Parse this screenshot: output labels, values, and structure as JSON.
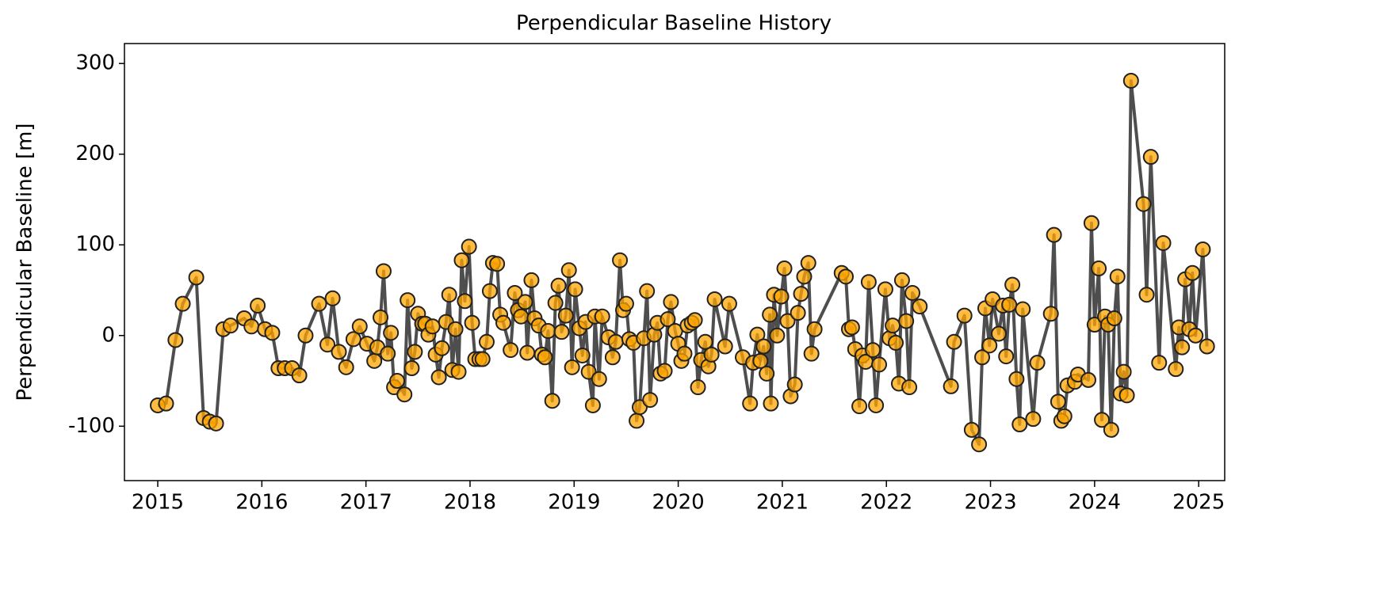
{
  "chart_data": {
    "type": "line",
    "title": "Perpendicular Baseline History",
    "y_label": "Perpendicular Baseline [m]",
    "x": [
      2015.0,
      2015.08,
      2015.17,
      2015.24,
      2015.37,
      2015.44,
      2015.5,
      2015.56,
      2015.63,
      2015.7,
      2015.83,
      2015.9,
      2015.96,
      2016.03,
      2016.1,
      2016.16,
      2016.22,
      2016.29,
      2016.36,
      2016.42,
      2016.55,
      2016.63,
      2016.68,
      2016.74,
      2016.81,
      2016.88,
      2016.94,
      2017.01,
      2017.08,
      2017.11,
      2017.14,
      2017.17,
      2017.21,
      2017.24,
      2017.27,
      2017.3,
      2017.37,
      2017.4,
      2017.44,
      2017.47,
      2017.5,
      2017.54,
      2017.57,
      2017.6,
      2017.64,
      2017.67,
      2017.7,
      2017.73,
      2017.77,
      2017.8,
      2017.83,
      2017.86,
      2017.89,
      2017.92,
      2017.95,
      2017.99,
      2018.02,
      2018.05,
      2018.09,
      2018.12,
      2018.16,
      2018.19,
      2018.22,
      2018.26,
      2018.29,
      2018.32,
      2018.39,
      2018.43,
      2018.46,
      2018.49,
      2018.53,
      2018.55,
      2018.59,
      2018.62,
      2018.66,
      2018.69,
      2018.72,
      2018.75,
      2018.79,
      2018.82,
      2018.85,
      2018.88,
      2018.92,
      2018.95,
      2018.98,
      2019.01,
      2019.05,
      2019.08,
      2019.11,
      2019.14,
      2019.18,
      2019.2,
      2019.24,
      2019.27,
      2019.33,
      2019.37,
      2019.4,
      2019.44,
      2019.47,
      2019.5,
      2019.53,
      2019.57,
      2019.6,
      2019.63,
      2019.67,
      2019.7,
      2019.73,
      2019.77,
      2019.8,
      2019.83,
      2019.87,
      2019.9,
      2019.93,
      2019.97,
      2020.0,
      2020.03,
      2020.06,
      2020.09,
      2020.13,
      2020.16,
      2020.19,
      2020.22,
      2020.26,
      2020.29,
      2020.32,
      2020.35,
      2020.45,
      2020.49,
      2020.62,
      2020.69,
      2020.72,
      2020.76,
      2020.79,
      2020.82,
      2020.85,
      2020.88,
      2020.89,
      2020.92,
      2020.95,
      2020.99,
      2021.02,
      2021.05,
      2021.08,
      2021.12,
      2021.15,
      2021.18,
      2021.21,
      2021.25,
      2021.28,
      2021.31,
      2021.57,
      2021.61,
      2021.64,
      2021.67,
      2021.7,
      2021.74,
      2021.77,
      2021.8,
      2021.83,
      2021.87,
      2021.9,
      2021.93,
      2021.99,
      2022.03,
      2022.06,
      2022.09,
      2022.12,
      2022.15,
      2022.19,
      2022.22,
      2022.25,
      2022.32,
      2022.62,
      2022.65,
      2022.75,
      2022.82,
      2022.89,
      2022.92,
      2022.95,
      2022.99,
      2023.02,
      2023.08,
      2023.12,
      2023.15,
      2023.18,
      2023.21,
      2023.25,
      2023.28,
      2023.31,
      2023.41,
      2023.45,
      2023.58,
      2023.61,
      2023.65,
      2023.68,
      2023.71,
      2023.74,
      2023.81,
      2023.84,
      2023.94,
      2023.97,
      2024.0,
      2024.04,
      2024.07,
      2024.1,
      2024.13,
      2024.16,
      2024.19,
      2024.22,
      2024.25,
      2024.28,
      2024.31,
      2024.35,
      2024.47,
      2024.5,
      2024.54,
      2024.62,
      2024.66,
      2024.78,
      2024.81,
      2024.84,
      2024.87,
      2024.91,
      2024.94,
      2024.97,
      2025.04,
      2025.08
    ],
    "values": [
      -77,
      -75,
      -5,
      35,
      64,
      -91,
      -95,
      -97,
      7,
      11,
      19,
      10,
      33,
      7,
      3,
      -36,
      -36,
      -36,
      -44,
      0,
      35,
      -10,
      41,
      -18,
      -35,
      -4,
      10,
      -9,
      -28,
      -13,
      20,
      71,
      -20,
      3,
      -57,
      -50,
      -65,
      39,
      -36,
      -18,
      24,
      13,
      13,
      1,
      10,
      -21,
      -46,
      -14,
      15,
      45,
      -38,
      7,
      -40,
      83,
      38,
      98,
      14,
      -26,
      -26,
      -26,
      -7,
      49,
      80,
      79,
      23,
      14,
      -16,
      47,
      28,
      21,
      37,
      -19,
      61,
      19,
      11,
      -21,
      -24,
      5,
      -72,
      36,
      55,
      4,
      22,
      72,
      -35,
      51,
      8,
      -22,
      15,
      -40,
      -77,
      21,
      -48,
      21,
      -2,
      -24,
      -7,
      83,
      28,
      35,
      -4,
      -8,
      -94,
      -79,
      -3,
      49,
      -71,
      1,
      14,
      -42,
      -39,
      18,
      37,
      5,
      -9,
      -28,
      -20,
      11,
      14,
      17,
      -57,
      -27,
      -7,
      -34,
      -21,
      40,
      -12,
      35,
      -24,
      -75,
      -30,
      1,
      -28,
      -12,
      -42,
      23,
      -75,
      45,
      0,
      43,
      74,
      16,
      -67,
      -54,
      25,
      46,
      65,
      80,
      -20,
      7,
      69,
      65,
      7,
      9,
      -15,
      -78,
      -22,
      -29,
      59,
      -16,
      -77,
      -32,
      51,
      -3,
      11,
      -8,
      -53,
      61,
      16,
      -57,
      47,
      32,
      -56,
      -7,
      22,
      -104,
      -120,
      -24,
      30,
      -11,
      40,
      2,
      33,
      -23,
      34,
      56,
      -48,
      -98,
      29,
      -92,
      -30,
      24,
      111,
      -73,
      -94,
      -89,
      -55,
      -51,
      -43,
      -49,
      124,
      12,
      74,
      -93,
      21,
      12,
      -104,
      19,
      65,
      -64,
      -40,
      -66,
      281,
      145,
      45,
      197,
      -30,
      102,
      -37,
      9,
      -13,
      62,
      7,
      69,
      0,
      95,
      -12
    ],
    "line_color": "#444444",
    "marker_color": "#ffa500",
    "xlim": [
      2014.68,
      2025.25
    ],
    "xticks": [
      2015,
      2016,
      2017,
      2018,
      2019,
      2020,
      2021,
      2022,
      2023,
      2024,
      2025
    ],
    "ylim": [
      -160,
      322
    ],
    "yticks": [
      -100,
      0,
      100,
      200,
      300
    ]
  }
}
